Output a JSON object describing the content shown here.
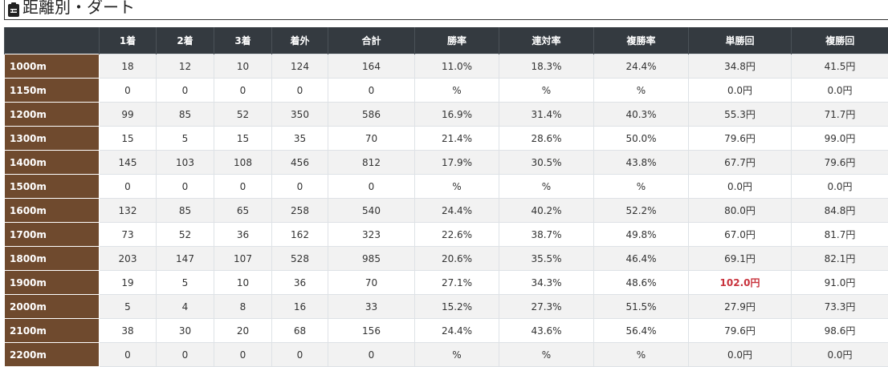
{
  "title": {
    "text": "距離別・ダート",
    "icon": "clipboard-list-icon"
  },
  "colors": {
    "header_bg": "#343a40",
    "distance_bg": "#6f4a2e",
    "highlight": "#c8323c",
    "stripe": "#f2f2f2"
  },
  "table": {
    "headers": [
      "",
      "1着",
      "2着",
      "3着",
      "着外",
      "合計",
      "勝率",
      "連対率",
      "複勝率",
      "単勝回",
      "複勝回"
    ],
    "rows": [
      [
        "1000m",
        "18",
        "12",
        "10",
        "124",
        "164",
        "11.0%",
        "18.3%",
        "24.4%",
        "34.8円",
        "41.5円"
      ],
      [
        "1150m",
        "0",
        "0",
        "0",
        "0",
        "0",
        "%",
        "%",
        "%",
        "0.0円",
        "0.0円"
      ],
      [
        "1200m",
        "99",
        "85",
        "52",
        "350",
        "586",
        "16.9%",
        "31.4%",
        "40.3%",
        "55.3円",
        "71.7円"
      ],
      [
        "1300m",
        "15",
        "5",
        "15",
        "35",
        "70",
        "21.4%",
        "28.6%",
        "50.0%",
        "79.6円",
        "99.0円"
      ],
      [
        "1400m",
        "145",
        "103",
        "108",
        "456",
        "812",
        "17.9%",
        "30.5%",
        "43.8%",
        "67.7円",
        "79.6円"
      ],
      [
        "1500m",
        "0",
        "0",
        "0",
        "0",
        "0",
        "%",
        "%",
        "%",
        "0.0円",
        "0.0円"
      ],
      [
        "1600m",
        "132",
        "85",
        "65",
        "258",
        "540",
        "24.4%",
        "40.2%",
        "52.2%",
        "80.0円",
        "84.8円"
      ],
      [
        "1700m",
        "73",
        "52",
        "36",
        "162",
        "323",
        "22.6%",
        "38.7%",
        "49.8%",
        "67.0円",
        "81.7円"
      ],
      [
        "1800m",
        "203",
        "147",
        "107",
        "528",
        "985",
        "20.6%",
        "35.5%",
        "46.4%",
        "69.1円",
        "82.1円"
      ],
      [
        "1900m",
        "19",
        "5",
        "10",
        "36",
        "70",
        "27.1%",
        "34.3%",
        "48.6%",
        "102.0円",
        "91.0円"
      ],
      [
        "2000m",
        "5",
        "4",
        "8",
        "16",
        "33",
        "15.2%",
        "27.3%",
        "51.5%",
        "27.9円",
        "73.3円"
      ],
      [
        "2100m",
        "38",
        "30",
        "20",
        "68",
        "156",
        "24.4%",
        "43.6%",
        "56.4%",
        "79.6円",
        "98.6円"
      ],
      [
        "2200m",
        "0",
        "0",
        "0",
        "0",
        "0",
        "%",
        "%",
        "%",
        "0.0円",
        "0.0円"
      ]
    ],
    "highlighted_cells": [
      {
        "row": 9,
        "col": 9
      }
    ]
  }
}
